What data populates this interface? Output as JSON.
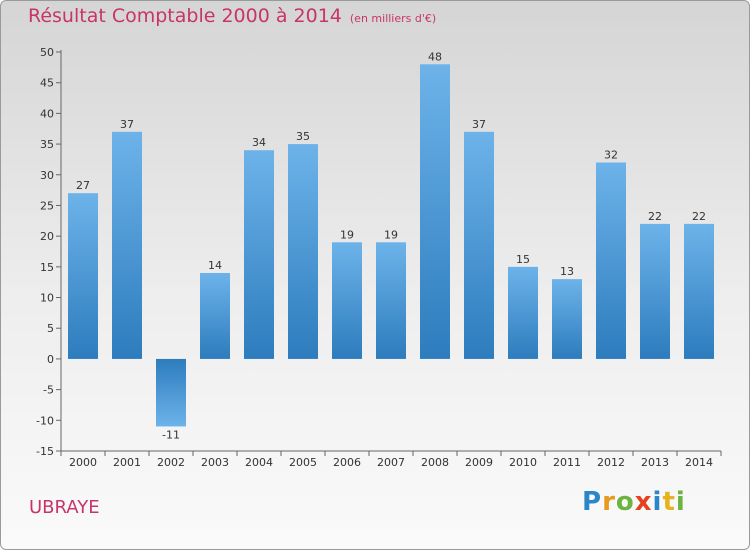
{
  "chart_data": {
    "type": "bar",
    "title": "Résultat Comptable 2000 à 2014",
    "subtitle": "(en milliers d'€)",
    "categories": [
      "2000",
      "2001",
      "2002",
      "2003",
      "2004",
      "2005",
      "2006",
      "2007",
      "2008",
      "2009",
      "2010",
      "2011",
      "2012",
      "2013",
      "2014"
    ],
    "values": [
      27,
      37,
      -11,
      14,
      34,
      35,
      19,
      19,
      48,
      37,
      15,
      13,
      32,
      22,
      22
    ],
    "value_labels": [
      "27",
      "37",
      "-11",
      "14",
      "34",
      "35",
      "19",
      "19",
      "48",
      "37",
      "15",
      "13",
      "32",
      "22",
      "22"
    ],
    "ylim": [
      -15,
      50
    ],
    "yticks": [
      -15,
      -10,
      -5,
      0,
      5,
      10,
      15,
      20,
      25,
      30,
      35,
      40,
      45,
      50
    ],
    "xlabel": "",
    "ylabel": "",
    "grid": false
  },
  "commune": "UBRAYE",
  "brand": {
    "letters": [
      "P",
      "r",
      "o",
      "x",
      "i",
      "t",
      "i"
    ],
    "colors": [
      "#2a86c8",
      "#e69a1f",
      "#6db33f",
      "#e6411f",
      "#2a86c8",
      "#e6b21f",
      "#6db33f"
    ]
  },
  "colors": {
    "bar_light": "#6db3ea",
    "bar_dark": "#2d7cbd",
    "title": "#c8346a",
    "axis": "#666666"
  }
}
